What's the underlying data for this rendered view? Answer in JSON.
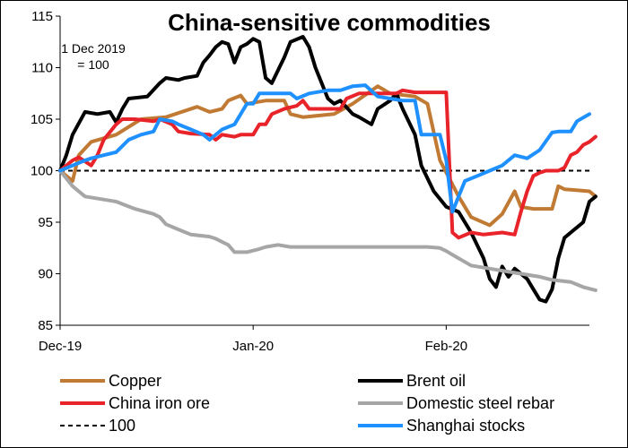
{
  "chart_data": {
    "type": "line",
    "title": "China-sensitive commodities",
    "annotation": [
      "1 Dec 2019",
      "= 100"
    ],
    "xlabel": "",
    "ylabel": "",
    "x_range": [
      "2019-12-01",
      "2020-02-24"
    ],
    "ylim": [
      85,
      115
    ],
    "y_ticks": [
      85,
      90,
      95,
      100,
      105,
      110,
      115
    ],
    "x_ticks": [
      {
        "date": "2019-12-01",
        "label": "Dec-19"
      },
      {
        "date": "2020-01-01",
        "label": "Jan-20"
      },
      {
        "date": "2020-02-01",
        "label": "Feb-20"
      }
    ],
    "grid": false,
    "legend_position": "bottom",
    "reference_line": {
      "name": "100",
      "value": 100,
      "color": "#000000",
      "dashed": true
    },
    "series": [
      {
        "name": "Copper",
        "color": "#C07A33",
        "points": [
          [
            "2019-12-01",
            100
          ],
          [
            "2019-12-03",
            99
          ],
          [
            "2019-12-04",
            101.5
          ],
          [
            "2019-12-06",
            102.8
          ],
          [
            "2019-12-10",
            103.5
          ],
          [
            "2019-12-14",
            105
          ],
          [
            "2019-12-18",
            105.2
          ],
          [
            "2019-12-21",
            105.8
          ],
          [
            "2019-12-23",
            106.2
          ],
          [
            "2019-12-25",
            105.7
          ],
          [
            "2019-12-27",
            106
          ],
          [
            "2019-12-28",
            106.8
          ],
          [
            "2019-12-30",
            107.3
          ],
          [
            "2019-12-31",
            106.5
          ],
          [
            "2020-01-03",
            106.8
          ],
          [
            "2020-01-06",
            106.8
          ],
          [
            "2020-01-07",
            105.5
          ],
          [
            "2020-01-09",
            105.2
          ],
          [
            "2020-01-14",
            105.5
          ],
          [
            "2020-01-17",
            106.5
          ],
          [
            "2020-01-21",
            108.2
          ],
          [
            "2020-01-23",
            107.5
          ],
          [
            "2020-01-27",
            107.2
          ],
          [
            "2020-01-29",
            106.5
          ],
          [
            "2020-01-31",
            101
          ],
          [
            "2020-02-03",
            97.5
          ],
          [
            "2020-02-05",
            95.5
          ],
          [
            "2020-02-08",
            94.7
          ],
          [
            "2020-02-10",
            95.8
          ],
          [
            "2020-02-12",
            98
          ],
          [
            "2020-02-13",
            96.5
          ],
          [
            "2020-02-15",
            96.3
          ],
          [
            "2020-02-18",
            96.3
          ],
          [
            "2020-02-19",
            98.5
          ],
          [
            "2020-02-20",
            98.2
          ],
          [
            "2020-02-24",
            98
          ],
          [
            "2020-02-25",
            97.5
          ]
        ]
      },
      {
        "name": "Brent oil",
        "color": "#000000",
        "points": [
          [
            "2019-12-01",
            100
          ],
          [
            "2019-12-02",
            101.5
          ],
          [
            "2019-12-03",
            103.5
          ],
          [
            "2019-12-05",
            105.7
          ],
          [
            "2019-12-07",
            105.5
          ],
          [
            "2019-12-09",
            105.7
          ],
          [
            "2019-12-10",
            104.7
          ],
          [
            "2019-12-11",
            106
          ],
          [
            "2019-12-12",
            107
          ],
          [
            "2019-12-15",
            107.2
          ],
          [
            "2019-12-17",
            108.5
          ],
          [
            "2019-12-18",
            109
          ],
          [
            "2019-12-20",
            108.8
          ],
          [
            "2019-12-21",
            109
          ],
          [
            "2019-12-23",
            109.2
          ],
          [
            "2019-12-24",
            110.5
          ],
          [
            "2019-12-25",
            111.2
          ],
          [
            "2019-12-26",
            112
          ],
          [
            "2019-12-27",
            112.5
          ],
          [
            "2019-12-28",
            112.3
          ],
          [
            "2019-12-29",
            110.5
          ],
          [
            "2019-12-30",
            112
          ],
          [
            "2019-12-31",
            112.3
          ],
          [
            "2020-01-01",
            112.8
          ],
          [
            "2020-01-02",
            112.5
          ],
          [
            "2020-01-03",
            109
          ],
          [
            "2020-01-04",
            108.5
          ],
          [
            "2020-01-06",
            111
          ],
          [
            "2020-01-07",
            112.5
          ],
          [
            "2020-01-09",
            113
          ],
          [
            "2020-01-10",
            112
          ],
          [
            "2020-01-11",
            110
          ],
          [
            "2020-01-13",
            107
          ],
          [
            "2020-01-14",
            106.5
          ],
          [
            "2020-01-15",
            106.8
          ],
          [
            "2020-01-17",
            105.5
          ],
          [
            "2020-01-18",
            105.2
          ],
          [
            "2020-01-20",
            104.5
          ],
          [
            "2020-01-21",
            106
          ],
          [
            "2020-01-23",
            106.8
          ],
          [
            "2020-01-24",
            107.5
          ],
          [
            "2020-01-25",
            106
          ],
          [
            "2020-01-27",
            103.5
          ],
          [
            "2020-01-28",
            100.5
          ],
          [
            "2020-01-30",
            98
          ],
          [
            "2020-02-01",
            96.5
          ],
          [
            "2020-02-03",
            96
          ],
          [
            "2020-02-05",
            94
          ],
          [
            "2020-02-07",
            91.5
          ],
          [
            "2020-02-08",
            89.5
          ],
          [
            "2020-02-09",
            88.7
          ],
          [
            "2020-02-10",
            90.7
          ],
          [
            "2020-02-11",
            89.7
          ],
          [
            "2020-02-12",
            90.5
          ],
          [
            "2020-02-14",
            89.5
          ],
          [
            "2020-02-15",
            88.5
          ],
          [
            "2020-02-16",
            87.5
          ],
          [
            "2020-02-17",
            87.3
          ],
          [
            "2020-02-18",
            88.5
          ],
          [
            "2020-02-19",
            91.5
          ],
          [
            "2020-02-20",
            93.5
          ],
          [
            "2020-02-21",
            94
          ],
          [
            "2020-02-22",
            94.5
          ],
          [
            "2020-02-23",
            95
          ],
          [
            "2020-02-24",
            97
          ],
          [
            "2020-02-25",
            97.5
          ]
        ]
      },
      {
        "name": "China iron ore",
        "color": "#E8232A",
        "points": [
          [
            "2019-12-01",
            100
          ],
          [
            "2019-12-02",
            100.5
          ],
          [
            "2019-12-03",
            101
          ],
          [
            "2019-12-04",
            101.3
          ],
          [
            "2019-12-06",
            100.5
          ],
          [
            "2019-12-07",
            101.5
          ],
          [
            "2019-12-08",
            103
          ],
          [
            "2019-12-10",
            104.5
          ],
          [
            "2019-12-11",
            105
          ],
          [
            "2019-12-13",
            105
          ],
          [
            "2019-12-16",
            104.8
          ],
          [
            "2019-12-17",
            105
          ],
          [
            "2019-12-19",
            104.5
          ],
          [
            "2019-12-20",
            103.8
          ],
          [
            "2019-12-22",
            103.6
          ],
          [
            "2019-12-25",
            103.5
          ],
          [
            "2019-12-26",
            103
          ],
          [
            "2019-12-27",
            103.5
          ],
          [
            "2019-12-29",
            103.3
          ],
          [
            "2019-12-30",
            103.5
          ],
          [
            "2020-01-01",
            103.5
          ],
          [
            "2020-01-02",
            104.5
          ],
          [
            "2020-01-03",
            104.5
          ],
          [
            "2020-01-04",
            105.5
          ],
          [
            "2020-01-06",
            106
          ],
          [
            "2020-01-08",
            106.3
          ],
          [
            "2020-01-09",
            106.8
          ],
          [
            "2020-01-10",
            106
          ],
          [
            "2020-01-13",
            106
          ],
          [
            "2020-01-15",
            106
          ],
          [
            "2020-01-16",
            107
          ],
          [
            "2020-01-18",
            107.5
          ],
          [
            "2020-01-22",
            107.5
          ],
          [
            "2020-01-24",
            107.5
          ],
          [
            "2020-01-25",
            107.8
          ],
          [
            "2020-01-27",
            107.6
          ],
          [
            "2020-02-01",
            107.6
          ],
          [
            "2020-02-02",
            94
          ],
          [
            "2020-02-03",
            93.5
          ],
          [
            "2020-02-05",
            94
          ],
          [
            "2020-02-07",
            93.8
          ],
          [
            "2020-02-10",
            94
          ],
          [
            "2020-02-12",
            93.8
          ],
          [
            "2020-02-13",
            96
          ],
          [
            "2020-02-14",
            98
          ],
          [
            "2020-02-15",
            99.5
          ],
          [
            "2020-02-16",
            99.8
          ],
          [
            "2020-02-17",
            100
          ],
          [
            "2020-02-19",
            100
          ],
          [
            "2020-02-20",
            100.3
          ],
          [
            "2020-02-21",
            101.5
          ],
          [
            "2020-02-22",
            101.8
          ],
          [
            "2020-02-23",
            102.5
          ],
          [
            "2020-02-24",
            102.8
          ],
          [
            "2020-02-25",
            103.3
          ]
        ]
      },
      {
        "name": "Domestic steel rebar",
        "color": "#A6A6A6",
        "points": [
          [
            "2019-12-01",
            100
          ],
          [
            "2019-12-03",
            98.5
          ],
          [
            "2019-12-05",
            97.5
          ],
          [
            "2019-12-08",
            97.2
          ],
          [
            "2019-12-10",
            97
          ],
          [
            "2019-12-13",
            96.3
          ],
          [
            "2019-12-16",
            95.8
          ],
          [
            "2019-12-17",
            95.5
          ],
          [
            "2019-12-18",
            94.8
          ],
          [
            "2019-12-20",
            94.3
          ],
          [
            "2019-12-22",
            93.8
          ],
          [
            "2019-12-25",
            93.6
          ],
          [
            "2019-12-26",
            93.4
          ],
          [
            "2019-12-27",
            93.1
          ],
          [
            "2019-12-28",
            92.8
          ],
          [
            "2019-12-29",
            92.1
          ],
          [
            "2019-12-31",
            92.1
          ],
          [
            "2020-01-02",
            92.4
          ],
          [
            "2020-01-03",
            92.6
          ],
          [
            "2020-01-05",
            92.8
          ],
          [
            "2020-01-07",
            92.6
          ],
          [
            "2020-01-09",
            92.6
          ],
          [
            "2020-01-15",
            92.6
          ],
          [
            "2020-01-22",
            92.6
          ],
          [
            "2020-01-29",
            92.6
          ],
          [
            "2020-01-31",
            92.5
          ],
          [
            "2020-02-01",
            92.2
          ],
          [
            "2020-02-03",
            91.5
          ],
          [
            "2020-02-05",
            90.8
          ],
          [
            "2020-02-08",
            90.5
          ],
          [
            "2020-02-10",
            90.3
          ],
          [
            "2020-02-13",
            90
          ],
          [
            "2020-02-16",
            89.7
          ],
          [
            "2020-02-18",
            89.4
          ],
          [
            "2020-02-21",
            89.2
          ],
          [
            "2020-02-23",
            88.7
          ],
          [
            "2020-02-25",
            88.4
          ]
        ]
      },
      {
        "name": "Shanghai stocks",
        "color": "#1E90FF",
        "points": [
          [
            "2019-12-01",
            100
          ],
          [
            "2019-12-03",
            100.5
          ],
          [
            "2019-12-05",
            101
          ],
          [
            "2019-12-06",
            101.2
          ],
          [
            "2019-12-08",
            101.5
          ],
          [
            "2019-12-10",
            101.8
          ],
          [
            "2019-12-12",
            103
          ],
          [
            "2019-12-14",
            103.5
          ],
          [
            "2019-12-16",
            103.8
          ],
          [
            "2019-12-17",
            105
          ],
          [
            "2019-12-19",
            104.8
          ],
          [
            "2019-12-20",
            104.5
          ],
          [
            "2019-12-22",
            104
          ],
          [
            "2019-12-24",
            103.5
          ],
          [
            "2019-12-25",
            103
          ],
          [
            "2019-12-27",
            104
          ],
          [
            "2019-12-29",
            104.5
          ],
          [
            "2019-12-30",
            105.5
          ],
          [
            "2019-12-31",
            106.5
          ],
          [
            "2020-01-01",
            106.5
          ],
          [
            "2020-01-02",
            107.5
          ],
          [
            "2020-01-05",
            107.5
          ],
          [
            "2020-01-07",
            107.5
          ],
          [
            "2020-01-08",
            107
          ],
          [
            "2020-01-10",
            107.5
          ],
          [
            "2020-01-13",
            107.8
          ],
          [
            "2020-01-15",
            107.8
          ],
          [
            "2020-01-17",
            108.2
          ],
          [
            "2020-01-19",
            108.3
          ],
          [
            "2020-01-21",
            107.2
          ],
          [
            "2020-01-23",
            107
          ],
          [
            "2020-01-25",
            106.8
          ],
          [
            "2020-01-27",
            106.8
          ],
          [
            "2020-01-28",
            103.5
          ],
          [
            "2020-01-31",
            103.5
          ],
          [
            "2020-02-01",
            101
          ],
          [
            "2020-02-02",
            96
          ],
          [
            "2020-02-03",
            97.5
          ],
          [
            "2020-02-04",
            99
          ],
          [
            "2020-02-06",
            99.5
          ],
          [
            "2020-02-08",
            100
          ],
          [
            "2020-02-10",
            100.5
          ],
          [
            "2020-02-12",
            101.5
          ],
          [
            "2020-02-14",
            101.2
          ],
          [
            "2020-02-16",
            102
          ],
          [
            "2020-02-18",
            103.7
          ],
          [
            "2020-02-19",
            103.8
          ],
          [
            "2020-02-21",
            103.8
          ],
          [
            "2020-02-22",
            104.8
          ],
          [
            "2020-02-24",
            105.5
          ]
        ]
      }
    ]
  }
}
